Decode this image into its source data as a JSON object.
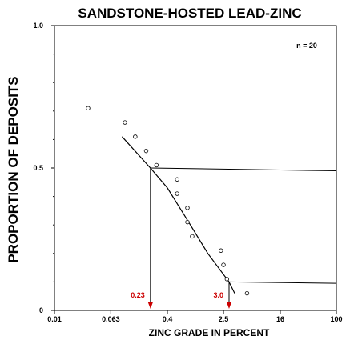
{
  "chart_data": {
    "type": "scatter",
    "title": "SANDSTONE-HOSTED LEAD-ZINC",
    "xlabel": "ZINC GRADE IN PERCENT",
    "ylabel": "PROPORTION OF DEPOSITS",
    "x_scale": "log",
    "xlim": [
      0.01,
      100
    ],
    "ylim": [
      0,
      1.0
    ],
    "x_ticks": [
      {
        "value": 0.01,
        "label": "0.01"
      },
      {
        "value": 0.063,
        "label": "0.063"
      },
      {
        "value": 0.4,
        "label": "0.4"
      },
      {
        "value": 2.5,
        "label": "2.5"
      },
      {
        "value": 16,
        "label": "16"
      },
      {
        "value": 100,
        "label": "100"
      }
    ],
    "y_ticks": [
      {
        "value": 0,
        "label": "0"
      },
      {
        "value": 0.5,
        "label": "0.5"
      },
      {
        "value": 1.0,
        "label": "1.0"
      }
    ],
    "annotation": "n = 20",
    "points": [
      {
        "x": 0.03,
        "y": 0.71
      },
      {
        "x": 0.1,
        "y": 0.66
      },
      {
        "x": 0.14,
        "y": 0.61
      },
      {
        "x": 0.2,
        "y": 0.56
      },
      {
        "x": 0.28,
        "y": 0.51
      },
      {
        "x": 0.55,
        "y": 0.46
      },
      {
        "x": 0.55,
        "y": 0.41
      },
      {
        "x": 0.77,
        "y": 0.36
      },
      {
        "x": 0.77,
        "y": 0.31
      },
      {
        "x": 0.9,
        "y": 0.26
      },
      {
        "x": 2.3,
        "y": 0.21
      },
      {
        "x": 2.5,
        "y": 0.16
      },
      {
        "x": 2.8,
        "y": 0.11
      },
      {
        "x": 5.4,
        "y": 0.06
      }
    ],
    "fitted_curve": [
      {
        "x": 0.091,
        "y": 0.61
      },
      {
        "x": 0.23,
        "y": 0.5
      },
      {
        "x": 0.4,
        "y": 0.43
      },
      {
        "x": 0.8,
        "y": 0.31
      },
      {
        "x": 1.5,
        "y": 0.2
      },
      {
        "x": 3.0,
        "y": 0.1
      },
      {
        "x": 3.6,
        "y": 0.06
      }
    ],
    "percentile_lines": [
      {
        "y": 0.5,
        "x": 0.23,
        "label": "0.23",
        "x_end": 100,
        "y_end": 0.49
      },
      {
        "y": 0.1,
        "x": 3.0,
        "label": "3.0",
        "x_end": 100,
        "y_end": 0.095
      }
    ],
    "marker_color": "#cc0000"
  }
}
